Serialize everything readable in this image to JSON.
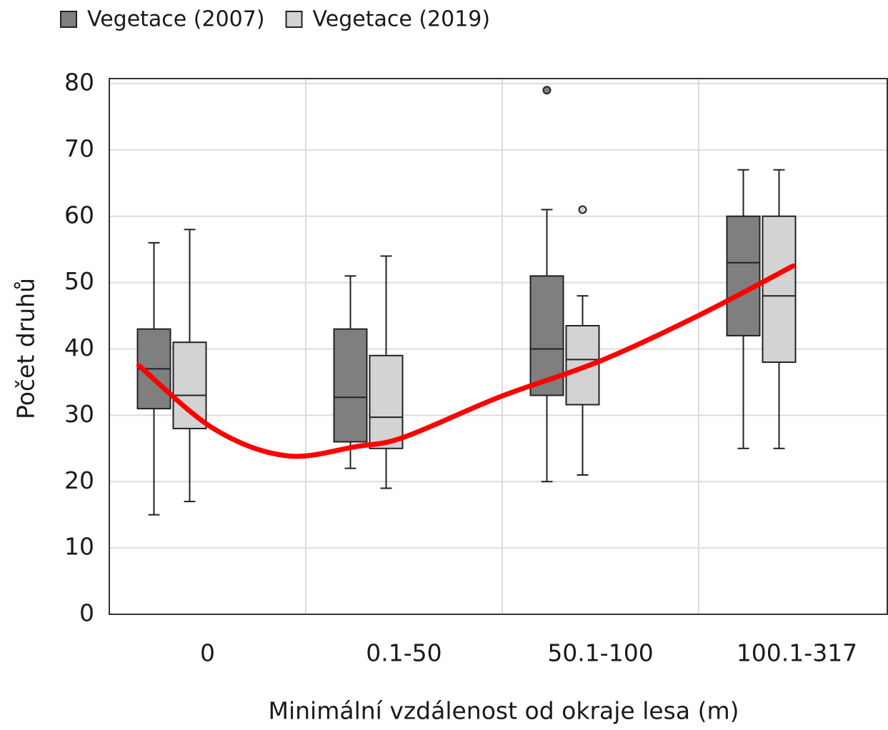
{
  "chart_data": {
    "type": "box",
    "xlabel": "Minimální vzdálenost od okraje lesa (m)",
    "ylabel": "Počet druhů",
    "categories": [
      "0",
      "0.1-50",
      "50.1-100",
      "100.1-317"
    ],
    "ylim": [
      0,
      80
    ],
    "yticks": [
      0,
      10,
      20,
      30,
      40,
      50,
      60,
      70,
      80
    ],
    "grid": true,
    "legend": "top-left",
    "series": [
      {
        "name": "Vegetace (2007)",
        "color": "#7f7f7f",
        "boxes": [
          {
            "min": 15,
            "q1": 31,
            "median": 37,
            "q3": 43,
            "max": 56
          },
          {
            "min": 22,
            "q1": 26,
            "median": 32.7,
            "q3": 43,
            "max": 51
          },
          {
            "min": 20,
            "q1": 33,
            "median": 40,
            "q3": 51,
            "max": 61,
            "outliers": [
              79
            ]
          },
          {
            "min": 25,
            "q1": 42,
            "median": 53,
            "q3": 60,
            "max": 67
          }
        ]
      },
      {
        "name": "Vegetace (2019)",
        "color": "#d3d3d3",
        "boxes": [
          {
            "min": 17,
            "q1": 28,
            "median": 33,
            "q3": 41,
            "max": 58
          },
          {
            "min": 19,
            "q1": 25,
            "median": 29.7,
            "q3": 39,
            "max": 54
          },
          {
            "min": 21,
            "q1": 31.6,
            "median": 38.4,
            "q3": 43.5,
            "max": 48,
            "outliers": [
              61
            ]
          },
          {
            "min": 25,
            "q1": 38,
            "median": 48,
            "q3": 60,
            "max": 67
          }
        ]
      }
    ],
    "trend": {
      "color": "#ff0000",
      "x": [
        -0.35,
        0.03,
        0.4,
        0.76,
        1.0,
        1.49,
        2.0,
        2.51,
        2.98
      ],
      "values": [
        37.5,
        28,
        23.9,
        25.3,
        26.7,
        32.8,
        38.2,
        45.2,
        52.5
      ]
    }
  }
}
